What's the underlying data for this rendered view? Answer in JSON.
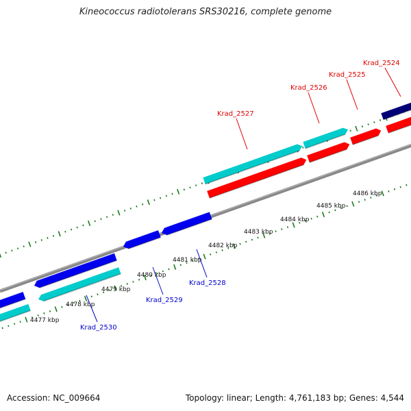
{
  "title": "Kineococcus radiotolerans SRS30216, complete genome",
  "footer": {
    "accession": "Accession: NC_009664",
    "summary": "Topology: linear; Length: 4,761,183 bp; Genes: 4,544"
  },
  "colors": {
    "forward_gene": "#ff0000",
    "forward_cds": "#00cccc",
    "reverse_gene": "#0000ee",
    "reverse_cds": "#00cccc",
    "forward_label": "#dd0000",
    "reverse_label": "#0000cc",
    "axis": "#888888",
    "tick": "#1a7a1a",
    "dark_gene": "#000077"
  },
  "scale": {
    "unit": "kbp",
    "ticks": [
      {
        "kbp": 4477,
        "label": "4477 kbp"
      },
      {
        "kbp": 4478,
        "label": "4478 kbp"
      },
      {
        "kbp": 4479,
        "label": "4479 kbp"
      },
      {
        "kbp": 4480,
        "label": "4480 kbp"
      },
      {
        "kbp": 4481,
        "label": "4481 kbp"
      },
      {
        "kbp": 4482,
        "label": "4482 kbp"
      },
      {
        "kbp": 4483,
        "label": "4483 kbp"
      },
      {
        "kbp": 4484,
        "label": "4484 kbp"
      },
      {
        "kbp": 4485,
        "label": "4485 kbp"
      },
      {
        "kbp": 4486,
        "label": "4486 kbp"
      }
    ]
  },
  "genes": [
    {
      "name": "Krad_2524",
      "strand": "+"
    },
    {
      "name": "Krad_2525",
      "strand": "+"
    },
    {
      "name": "Krad_2526",
      "strand": "+"
    },
    {
      "name": "Krad_2527",
      "strand": "+"
    },
    {
      "name": "Krad_2528",
      "strand": "-"
    },
    {
      "name": "Krad_2529",
      "strand": "-"
    },
    {
      "name": "Krad_2530",
      "strand": "-"
    }
  ]
}
